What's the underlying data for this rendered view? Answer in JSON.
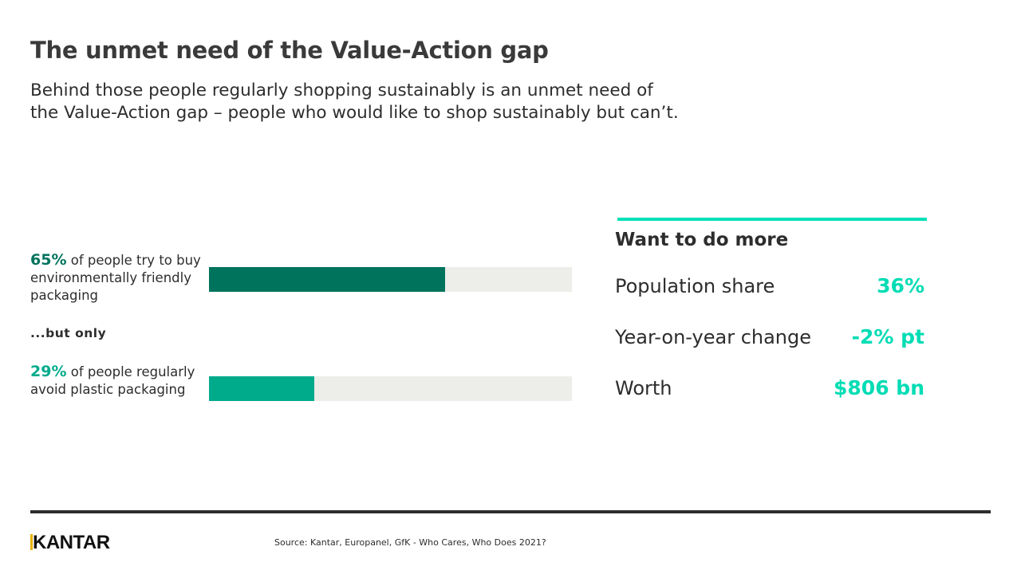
{
  "title": "The unmet need of the Value-Action gap",
  "subtitle": "Behind those people regularly shopping sustainably is an unmet need of the Value-Action gap – people who would like to shop sustainably but can’t.",
  "chart_data": {
    "type": "bar",
    "orientation": "horizontal",
    "xlim": [
      0,
      100
    ],
    "bars": [
      {
        "value_label": "65%",
        "text": " of people try to buy environmentally friendly packaging",
        "value": 65,
        "color": "#00735d"
      },
      {
        "value_label": "29%",
        "text": " of people regularly avoid plastic packaging",
        "value": 29,
        "color": "#00ab8c"
      }
    ],
    "track_color": "#ededea"
  },
  "connector": "...but only",
  "panel": {
    "title": "Want to do more",
    "accent_color": "#00e0b8",
    "rows": [
      {
        "label": "Population share",
        "value": "36%"
      },
      {
        "label": "Year-on-year change",
        "value": "-2% pt"
      },
      {
        "label": "Worth",
        "value": "$806 bn"
      }
    ]
  },
  "footer": {
    "logo": "KANTAR",
    "source": "Source: Kantar, Europanel, GfK - Who Cares, Who Does 2021?"
  }
}
